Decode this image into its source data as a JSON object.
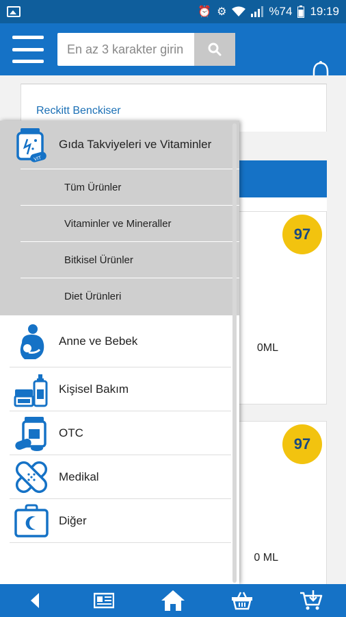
{
  "status_bar": {
    "battery": "%74",
    "time": "19:19"
  },
  "header": {
    "search_placeholder": "En az 3 karakter girin",
    "menu_icon": "hamburger-icon",
    "search_icon": "search-icon",
    "notification_icon": "bell-icon"
  },
  "background": {
    "brand": "Reckitt Benckiser",
    "products": [
      {
        "badge": "97",
        "size_text": "0ML"
      },
      {
        "badge": "97",
        "size_text": "0 ML"
      }
    ]
  },
  "drawer": {
    "active_category": {
      "label": "Gıda Takviyeleri ve Vitaminler",
      "icon": "vitamin-bottle-icon",
      "subcategories": [
        "Tüm Ürünler",
        "Vitaminler ve Mineraller",
        "Bitkisel Ürünler",
        "Diet Ürünleri"
      ]
    },
    "categories": [
      {
        "label": "Anne ve Bebek",
        "icon": "mother-baby-icon"
      },
      {
        "label": "Kişisel Bakım",
        "icon": "personal-care-icon"
      },
      {
        "label": "OTC",
        "icon": "medicine-icon"
      },
      {
        "label": "Medikal",
        "icon": "bandage-icon"
      },
      {
        "label": "Diğer",
        "icon": "first-aid-kit-icon"
      }
    ]
  },
  "bottom_nav": [
    {
      "icon": "back-icon"
    },
    {
      "icon": "news-icon"
    },
    {
      "icon": "home-icon"
    },
    {
      "icon": "basket-icon"
    },
    {
      "icon": "cart-add-icon"
    }
  ],
  "colors": {
    "primary": "#1572c6",
    "status_bar": "#0f5e9c",
    "badge": "#f2c30f",
    "active_category_bg": "#cfcfcf"
  }
}
